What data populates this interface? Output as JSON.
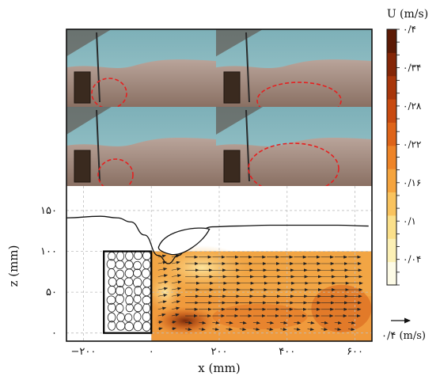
{
  "chart_data": {
    "type": "heatmap",
    "xlabel": "x (mm)",
    "ylabel": "z (mm)",
    "xlim": [
      -250,
      650
    ],
    "ylim": [
      -10,
      180
    ],
    "x_ticks": [
      {
        "v": -200,
        "label": "−۲۰۰"
      },
      {
        "v": 0,
        "label": "۰"
      },
      {
        "v": 200,
        "label": "۲۰۰"
      },
      {
        "v": 400,
        "label": "۴۰۰"
      },
      {
        "v": 600,
        "label": "۶۰۰"
      }
    ],
    "y_ticks": [
      {
        "v": 0,
        "label": "۰"
      },
      {
        "v": 50,
        "label": "۵۰"
      },
      {
        "v": 100,
        "label": "۱۰۰"
      },
      {
        "v": 150,
        "label": "۱۵۰"
      }
    ],
    "grid": true,
    "colorbar": {
      "title": "U (m/s)",
      "range": [
        0,
        0.4
      ],
      "ticks": [
        {
          "v": 0.4,
          "label": "۰/۴"
        },
        {
          "v": 0.34,
          "label": "۰/۳۴"
        },
        {
          "v": 0.28,
          "label": "۰/۲۸"
        },
        {
          "v": 0.22,
          "label": "۰/۲۲"
        },
        {
          "v": 0.16,
          "label": "۰/۱۶"
        },
        {
          "v": 0.1,
          "label": "۰/۱"
        },
        {
          "v": 0.04,
          "label": "۰/۰۴"
        }
      ],
      "colors": [
        "#fdfbe6",
        "#fcf0b5",
        "#fbe08a",
        "#f9c35e",
        "#f5a43e",
        "#ee8427",
        "#de6419",
        "#c84a10",
        "#a8360b",
        "#842607",
        "#5c1a05"
      ]
    },
    "reference_vector": {
      "label": "۰/۴ (m/s)",
      "value": 0.4
    },
    "free_surface": {
      "x": [
        -250,
        -150,
        -100,
        -60,
        -20,
        20,
        50,
        80,
        120,
        180,
        250,
        350,
        450,
        550,
        640
      ],
      "z": [
        141,
        143,
        141,
        136,
        120,
        95,
        85,
        95,
        119,
        130,
        131,
        132,
        132,
        132,
        131
      ]
    },
    "contact_zone_z": 100,
    "porous_structure": {
      "x_range": [
        -140,
        0
      ],
      "z_range": [
        0,
        100
      ]
    },
    "velocity_field_note": "mostly horizontal flow to the right within the contact zone 0–600 mm",
    "photos": [
      {
        "position": "top-left",
        "highlight": "dashed red ellipse"
      },
      {
        "position": "top-right",
        "highlight": "dashed red ellipse"
      },
      {
        "position": "bottom-left",
        "highlight": "dashed red ellipse"
      },
      {
        "position": "bottom-right",
        "highlight": "dashed red ellipse"
      }
    ]
  }
}
